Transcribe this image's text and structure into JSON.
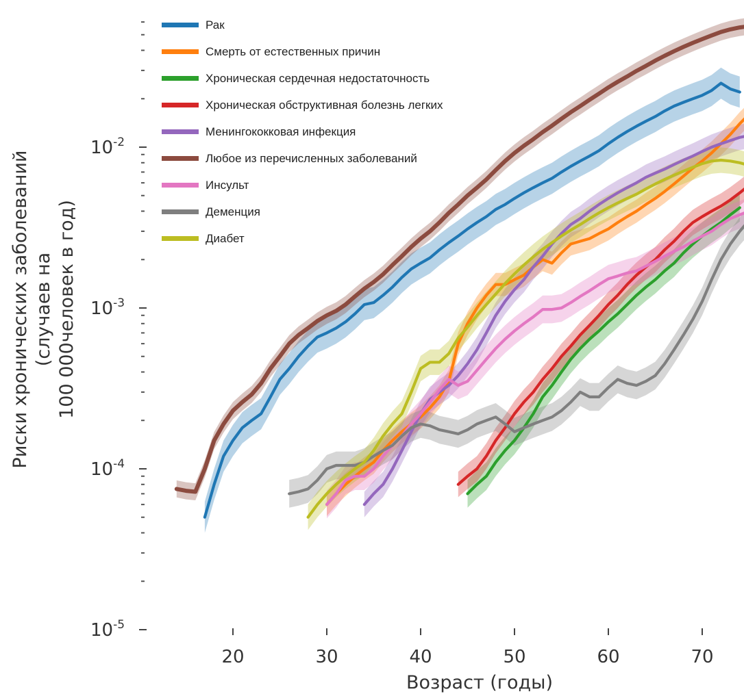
{
  "chart_data": {
    "type": "line",
    "title": "",
    "xlabel": "Возраст (годы)",
    "ylabel": [
      "Риски хронических заболеваний",
      "(случаев на",
      "100 000человек в год)"
    ],
    "y_scale": "log",
    "ylim": [
      1e-05,
      0.06
    ],
    "xlim": [
      14,
      75
    ],
    "x_ticks": [
      20,
      30,
      40,
      50,
      60,
      70
    ],
    "y_ticks": [
      {
        "value": 1e-05,
        "base": "10",
        "exp": "-5"
      },
      {
        "value": 0.0001,
        "base": "10",
        "exp": "-4"
      },
      {
        "value": 0.001,
        "base": "10",
        "exp": "-3"
      },
      {
        "value": 0.01,
        "base": "10",
        "exp": "-2"
      }
    ],
    "grid": false,
    "legend_position": "top-left",
    "series": [
      {
        "name": "Рак",
        "color": "#1f77b4",
        "x": [
          17,
          18,
          19,
          20,
          21,
          22,
          23,
          24,
          25,
          26,
          27,
          28,
          29,
          30,
          31,
          32,
          33,
          34,
          35,
          36,
          37,
          38,
          39,
          40,
          41,
          42,
          43,
          44,
          45,
          46,
          47,
          48,
          49,
          50,
          51,
          52,
          53,
          54,
          55,
          56,
          57,
          58,
          59,
          60,
          61,
          62,
          63,
          64,
          65,
          66,
          67,
          68,
          69,
          70,
          71,
          72,
          73,
          74
        ],
        "y": [
          5e-05,
          8e-05,
          0.00012,
          0.00015,
          0.00018,
          0.0002,
          0.00022,
          0.00028,
          0.00036,
          0.00042,
          0.0005,
          0.00058,
          0.00066,
          0.0007,
          0.00075,
          0.00082,
          0.00092,
          0.00105,
          0.00108,
          0.0012,
          0.00135,
          0.00155,
          0.00175,
          0.0019,
          0.00205,
          0.0023,
          0.00255,
          0.0028,
          0.0031,
          0.0034,
          0.0037,
          0.0041,
          0.0044,
          0.0048,
          0.0052,
          0.0056,
          0.006,
          0.0064,
          0.007,
          0.0076,
          0.0082,
          0.0088,
          0.0095,
          0.0105,
          0.0115,
          0.0125,
          0.0135,
          0.0145,
          0.0155,
          0.0168,
          0.018,
          0.019,
          0.02,
          0.021,
          0.0225,
          0.025,
          0.023,
          0.022
        ],
        "band": 0.25
      },
      {
        "name": "Смерть от естественных причин",
        "color": "#ff7f0e",
        "x": [
          30,
          31,
          32,
          33,
          34,
          35,
          36,
          37,
          38,
          39,
          40,
          41,
          42,
          43,
          44,
          45,
          46,
          47,
          48,
          49,
          50,
          51,
          52,
          53,
          54,
          55,
          56,
          57,
          58,
          59,
          60,
          61,
          62,
          63,
          64,
          65,
          66,
          67,
          68,
          69,
          70,
          71,
          72,
          73,
          74,
          75
        ],
        "y": [
          6e-05,
          7e-05,
          8e-05,
          9e-05,
          0.0001,
          0.00011,
          0.00013,
          0.00015,
          0.00017,
          0.00019,
          0.00021,
          0.00024,
          0.00028,
          0.00035,
          0.0006,
          0.0008,
          0.001,
          0.0012,
          0.0014,
          0.0014,
          0.0015,
          0.0016,
          0.0018,
          0.002,
          0.0019,
          0.0022,
          0.0025,
          0.0026,
          0.0027,
          0.0029,
          0.0031,
          0.0034,
          0.0037,
          0.004,
          0.0044,
          0.0048,
          0.0053,
          0.0059,
          0.0066,
          0.0074,
          0.0082,
          0.0092,
          0.0105,
          0.012,
          0.014,
          0.016
        ],
        "band": 0.18
      },
      {
        "name": "Хроническая сердечная недостаточность",
        "color": "#2ca02c",
        "x": [
          45,
          46,
          47,
          48,
          49,
          50,
          51,
          52,
          53,
          54,
          55,
          56,
          57,
          58,
          59,
          60,
          61,
          62,
          63,
          64,
          65,
          66,
          67,
          68,
          69,
          70,
          71,
          72,
          73,
          74
        ],
        "y": [
          7e-05,
          8e-05,
          9e-05,
          0.00011,
          0.00013,
          0.00015,
          0.00018,
          0.00022,
          0.00028,
          0.00033,
          0.0004,
          0.00048,
          0.00056,
          0.00064,
          0.00072,
          0.00082,
          0.00092,
          0.00105,
          0.0012,
          0.00135,
          0.0015,
          0.0017,
          0.0019,
          0.0022,
          0.0025,
          0.0028,
          0.0031,
          0.0034,
          0.0038,
          0.0042
        ],
        "band": 0.22
      },
      {
        "name": "Хроническая обструктивная болезнь легких",
        "color": "#d62728",
        "x": [
          44,
          45,
          46,
          47,
          48,
          49,
          50,
          51,
          52,
          53,
          54,
          55,
          56,
          57,
          58,
          59,
          60,
          61,
          62,
          63,
          64,
          65,
          66,
          67,
          68,
          69,
          70,
          71,
          72,
          73,
          74,
          75
        ],
        "y": [
          8e-05,
          9e-05,
          0.0001,
          0.00012,
          0.00015,
          0.00018,
          0.00022,
          0.00026,
          0.0003,
          0.00036,
          0.00042,
          0.0005,
          0.00058,
          0.00068,
          0.00078,
          0.0009,
          0.00105,
          0.0012,
          0.0014,
          0.0016,
          0.0018,
          0.002,
          0.0023,
          0.0026,
          0.003,
          0.0034,
          0.0037,
          0.004,
          0.0043,
          0.0047,
          0.0052,
          0.0058
        ],
        "band": 0.2
      },
      {
        "name": "Менингококковая инфекция",
        "color": "#9467bd",
        "x": [
          34,
          35,
          36,
          37,
          38,
          39,
          40,
          41,
          42,
          43,
          44,
          45,
          46,
          47,
          48,
          49,
          50,
          51,
          52,
          53,
          54,
          55,
          56,
          57,
          58,
          59,
          60,
          61,
          62,
          63,
          64,
          65,
          66,
          67,
          68,
          69,
          70,
          71,
          72,
          73,
          74,
          75
        ],
        "y": [
          6e-05,
          7e-05,
          8e-05,
          0.0001,
          0.00013,
          0.00017,
          0.00022,
          0.00027,
          0.0003,
          0.00033,
          0.00038,
          0.00045,
          0.00055,
          0.0007,
          0.0009,
          0.0011,
          0.0013,
          0.0015,
          0.0018,
          0.0021,
          0.0025,
          0.0029,
          0.0033,
          0.0036,
          0.004,
          0.0044,
          0.0048,
          0.0052,
          0.0056,
          0.006,
          0.0065,
          0.0069,
          0.0073,
          0.0078,
          0.0083,
          0.0088,
          0.0094,
          0.01,
          0.0105,
          0.011,
          0.0115,
          0.0118
        ],
        "band": 0.2
      },
      {
        "name": "Любое из перечисленных заболеваний",
        "color": "#8c4b3f",
        "x": [
          14,
          15,
          16,
          17,
          18,
          19,
          20,
          21,
          22,
          23,
          24,
          25,
          26,
          27,
          28,
          29,
          30,
          31,
          32,
          33,
          34,
          35,
          36,
          37,
          38,
          39,
          40,
          41,
          42,
          43,
          44,
          45,
          46,
          47,
          48,
          49,
          50,
          51,
          52,
          53,
          54,
          55,
          56,
          57,
          58,
          59,
          60,
          61,
          62,
          63,
          64,
          65,
          66,
          67,
          68,
          69,
          70,
          71,
          72,
          73,
          74,
          75
        ],
        "y": [
          7.5e-05,
          7.3e-05,
          7.2e-05,
          0.0001,
          0.00015,
          0.00019,
          0.00023,
          0.00026,
          0.00029,
          0.00034,
          0.00042,
          0.0005,
          0.0006,
          0.00068,
          0.00075,
          0.00083,
          0.0009,
          0.00096,
          0.00105,
          0.00118,
          0.00132,
          0.00145,
          0.00162,
          0.00185,
          0.0021,
          0.0024,
          0.0027,
          0.003,
          0.0034,
          0.0039,
          0.0044,
          0.005,
          0.0056,
          0.0063,
          0.0072,
          0.0082,
          0.0092,
          0.0102,
          0.0112,
          0.0124,
          0.0136,
          0.015,
          0.0165,
          0.018,
          0.0197,
          0.0215,
          0.0235,
          0.0255,
          0.0275,
          0.0298,
          0.032,
          0.0345,
          0.037,
          0.0395,
          0.042,
          0.0445,
          0.047,
          0.0495,
          0.052,
          0.054,
          0.0555,
          0.0565
        ],
        "band": 0.13
      },
      {
        "name": "Инсульт",
        "color": "#e377c2",
        "x": [
          30,
          31,
          32,
          33,
          34,
          35,
          36,
          37,
          38,
          39,
          40,
          41,
          42,
          43,
          44,
          45,
          46,
          47,
          48,
          49,
          50,
          51,
          52,
          53,
          54,
          55,
          56,
          57,
          58,
          59,
          60,
          61,
          62,
          63,
          64,
          65,
          66,
          67,
          68,
          69,
          70,
          71,
          72,
          73,
          74,
          75
        ],
        "y": [
          6e-05,
          7e-05,
          8.5e-05,
          9e-05,
          9e-05,
          0.0001,
          0.00012,
          0.00014,
          0.00016,
          0.00019,
          0.00022,
          0.00026,
          0.00031,
          0.00036,
          0.00033,
          0.00035,
          0.00041,
          0.00048,
          0.00056,
          0.00064,
          0.00072,
          0.0008,
          0.00088,
          0.00098,
          0.00098,
          0.001,
          0.00108,
          0.00118,
          0.00128,
          0.0014,
          0.00152,
          0.00158,
          0.00165,
          0.0017,
          0.00182,
          0.00195,
          0.0021,
          0.00225,
          0.0024,
          0.0026,
          0.0028,
          0.003,
          0.0033,
          0.0036,
          0.0038,
          0.004
        ],
        "band": 0.22
      },
      {
        "name": "Деменция",
        "color": "#7f7f7f",
        "x": [
          26,
          27,
          28,
          29,
          30,
          31,
          32,
          33,
          34,
          35,
          36,
          37,
          38,
          39,
          40,
          41,
          42,
          43,
          44,
          45,
          46,
          47,
          48,
          49,
          50,
          51,
          52,
          53,
          54,
          55,
          56,
          57,
          58,
          59,
          60,
          61,
          62,
          63,
          64,
          65,
          66,
          67,
          68,
          69,
          70,
          71,
          72,
          73,
          74,
          75
        ],
        "y": [
          7e-05,
          7.2e-05,
          7.5e-05,
          8.5e-05,
          0.0001,
          0.000105,
          0.000105,
          0.000105,
          0.00011,
          0.00012,
          0.00013,
          0.00014,
          0.00016,
          0.00018,
          0.00019,
          0.000185,
          0.000175,
          0.00017,
          0.000165,
          0.000175,
          0.00019,
          0.0002,
          0.00021,
          0.00019,
          0.00017,
          0.00018,
          0.00019,
          0.0002,
          0.00021,
          0.00023,
          0.00026,
          0.0003,
          0.00028,
          0.00028,
          0.00032,
          0.00036,
          0.00034,
          0.00033,
          0.00035,
          0.00038,
          0.00045,
          0.00055,
          0.00068,
          0.00085,
          0.0011,
          0.0015,
          0.002,
          0.0025,
          0.003,
          0.0035
        ],
        "band": 0.22
      },
      {
        "name": "Диабет",
        "color": "#bcbd22",
        "x": [
          28,
          29,
          30,
          31,
          32,
          33,
          34,
          35,
          36,
          37,
          38,
          39,
          40,
          41,
          42,
          43,
          44,
          45,
          46,
          47,
          48,
          49,
          50,
          51,
          52,
          53,
          54,
          55,
          56,
          57,
          58,
          59,
          60,
          61,
          62,
          63,
          64,
          65,
          66,
          67,
          68,
          69,
          70,
          71,
          72,
          73,
          74,
          75
        ],
        "y": [
          5e-05,
          6e-05,
          7e-05,
          8e-05,
          9e-05,
          0.0001,
          0.00011,
          0.00013,
          0.00016,
          0.00019,
          0.00022,
          0.0003,
          0.00042,
          0.00046,
          0.00046,
          0.00052,
          0.00065,
          0.00076,
          0.0009,
          0.00105,
          0.00122,
          0.00142,
          0.00163,
          0.00185,
          0.00208,
          0.00232,
          0.00255,
          0.0028,
          0.00305,
          0.0033,
          0.0036,
          0.0039,
          0.0042,
          0.0045,
          0.0048,
          0.0051,
          0.0055,
          0.0059,
          0.0063,
          0.0067,
          0.0071,
          0.0075,
          0.0079,
          0.0082,
          0.0083,
          0.0082,
          0.008,
          0.0077
        ],
        "band": 0.2
      }
    ]
  }
}
